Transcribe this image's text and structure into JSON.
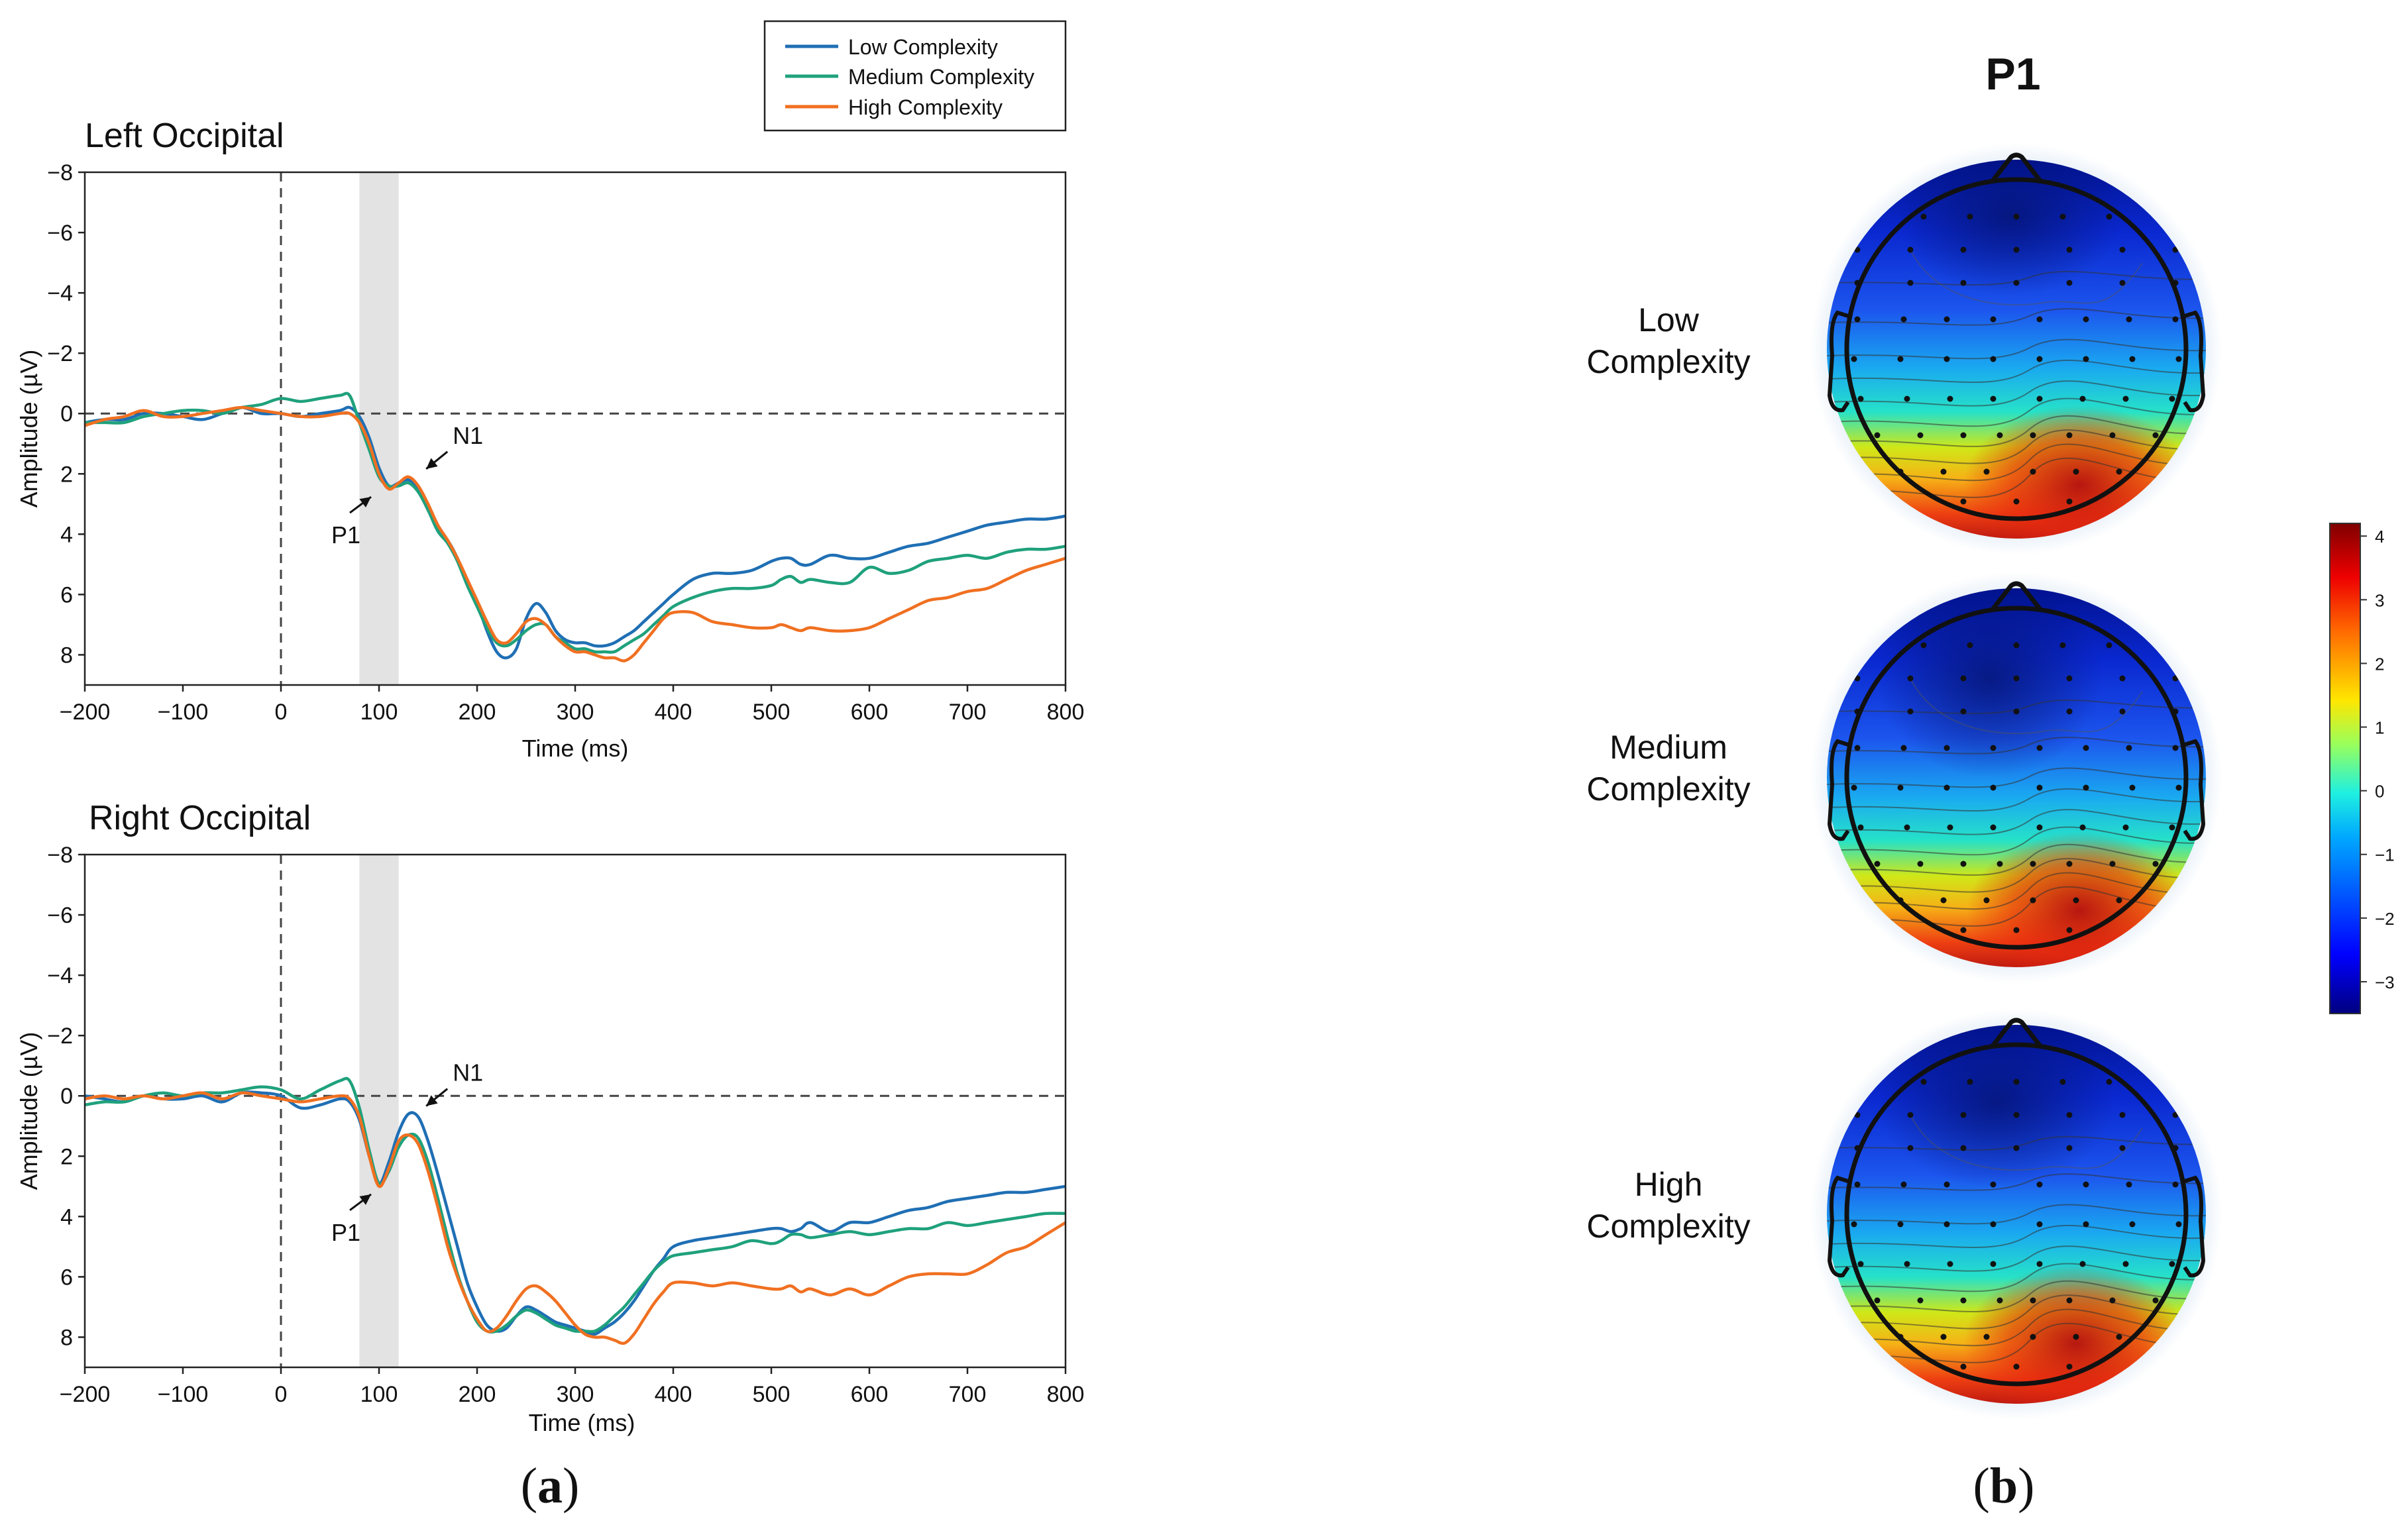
{
  "chart_data": [
    {
      "type": "line",
      "title": "Left Occipital",
      "xlabel": "Time (ms)",
      "ylabel": "Amplitude (µV)",
      "xlim": [
        -200,
        800
      ],
      "ylim": [
        -8,
        9
      ],
      "y_inverted": true,
      "xticks": [
        -200,
        -100,
        0,
        100,
        200,
        300,
        400,
        500,
        600,
        700,
        800
      ],
      "xtick_labels": [
        "−200",
        "−100",
        "0",
        "100",
        "200",
        "300",
        "400",
        "500",
        "600",
        "700",
        "800"
      ],
      "yticks": [
        -8,
        -6,
        -4,
        -2,
        0,
        2,
        4,
        6,
        8
      ],
      "ytick_labels": [
        "−8",
        "−6",
        "−4",
        "−2",
        "0",
        "2",
        "4",
        "6",
        "8"
      ],
      "shaded_window": [
        80,
        120
      ],
      "annotations": [
        {
          "text": "P1",
          "x": 100,
          "y": 2.5
        },
        {
          "text": "N1",
          "x": 140,
          "y": 2.1
        }
      ],
      "series": [
        {
          "name": "Low Complexity",
          "color": "#1f6fb4",
          "x": [
            -200,
            -180,
            -160,
            -140,
            -120,
            -100,
            -80,
            -60,
            -40,
            -20,
            0,
            20,
            40,
            60,
            70,
            80,
            90,
            100,
            110,
            120,
            130,
            140,
            150,
            160,
            170,
            180,
            190,
            200,
            210,
            220,
            230,
            240,
            250,
            260,
            270,
            280,
            290,
            300,
            310,
            320,
            330,
            340,
            350,
            360,
            370,
            380,
            390,
            400,
            420,
            440,
            460,
            480,
            500,
            510,
            520,
            530,
            540,
            560,
            580,
            600,
            620,
            640,
            660,
            680,
            700,
            720,
            740,
            760,
            780,
            800
          ],
          "y": [
            0.3,
            0.2,
            0.2,
            0.0,
            0.0,
            0.1,
            0.2,
            0.0,
            -0.2,
            0.0,
            0.0,
            0.1,
            0.0,
            -0.1,
            -0.2,
            0.1,
            0.8,
            1.8,
            2.4,
            2.3,
            2.2,
            2.5,
            3.2,
            3.8,
            4.2,
            4.8,
            5.6,
            6.3,
            7.2,
            7.9,
            8.1,
            7.8,
            6.8,
            6.3,
            6.6,
            7.2,
            7.5,
            7.6,
            7.6,
            7.7,
            7.7,
            7.6,
            7.4,
            7.2,
            6.9,
            6.6,
            6.3,
            6.0,
            5.5,
            5.3,
            5.3,
            5.2,
            4.9,
            4.8,
            4.8,
            5.0,
            5.0,
            4.7,
            4.8,
            4.8,
            4.6,
            4.4,
            4.3,
            4.1,
            3.9,
            3.7,
            3.6,
            3.5,
            3.5,
            3.4
          ]
        },
        {
          "name": "Medium Complexity",
          "color": "#1fa17c",
          "x": [
            -200,
            -180,
            -160,
            -140,
            -120,
            -100,
            -80,
            -60,
            -40,
            -20,
            0,
            20,
            40,
            60,
            70,
            80,
            90,
            100,
            110,
            120,
            130,
            140,
            150,
            160,
            170,
            180,
            190,
            200,
            210,
            220,
            230,
            240,
            250,
            260,
            270,
            280,
            290,
            300,
            310,
            320,
            330,
            340,
            350,
            360,
            370,
            380,
            390,
            400,
            420,
            440,
            460,
            480,
            500,
            510,
            520,
            530,
            540,
            560,
            580,
            600,
            620,
            640,
            660,
            680,
            700,
            720,
            740,
            760,
            780,
            800
          ],
          "y": [
            0.3,
            0.3,
            0.3,
            0.1,
            0.0,
            -0.1,
            -0.1,
            0.0,
            -0.2,
            -0.3,
            -0.5,
            -0.4,
            -0.5,
            -0.6,
            -0.6,
            0.3,
            1.2,
            2.1,
            2.4,
            2.4,
            2.3,
            2.6,
            3.2,
            3.9,
            4.3,
            4.9,
            5.7,
            6.4,
            7.1,
            7.6,
            7.7,
            7.5,
            7.2,
            7.0,
            7.0,
            7.4,
            7.6,
            7.8,
            7.8,
            7.9,
            7.9,
            7.9,
            7.7,
            7.5,
            7.3,
            7.0,
            6.7,
            6.4,
            6.1,
            5.9,
            5.8,
            5.8,
            5.7,
            5.5,
            5.4,
            5.6,
            5.5,
            5.6,
            5.6,
            5.1,
            5.3,
            5.2,
            4.9,
            4.8,
            4.7,
            4.8,
            4.6,
            4.5,
            4.5,
            4.4
          ]
        },
        {
          "name": "High Complexity",
          "color": "#f07021",
          "x": [
            -200,
            -180,
            -160,
            -140,
            -120,
            -100,
            -80,
            -60,
            -40,
            -20,
            0,
            20,
            40,
            60,
            70,
            80,
            90,
            100,
            110,
            120,
            130,
            140,
            150,
            160,
            170,
            180,
            190,
            200,
            210,
            220,
            230,
            240,
            250,
            260,
            270,
            280,
            290,
            300,
            310,
            320,
            330,
            340,
            350,
            360,
            370,
            380,
            390,
            400,
            420,
            440,
            460,
            480,
            500,
            510,
            520,
            530,
            540,
            560,
            580,
            600,
            620,
            640,
            660,
            680,
            700,
            720,
            740,
            760,
            780,
            800
          ],
          "y": [
            0.4,
            0.2,
            0.1,
            -0.1,
            0.1,
            0.1,
            0.0,
            -0.1,
            -0.2,
            -0.1,
            0.0,
            0.1,
            0.1,
            0.0,
            0.0,
            0.3,
            1.0,
            2.0,
            2.5,
            2.3,
            2.1,
            2.4,
            3.0,
            3.7,
            4.2,
            4.8,
            5.5,
            6.2,
            6.9,
            7.5,
            7.6,
            7.3,
            6.9,
            6.8,
            7.0,
            7.4,
            7.7,
            7.9,
            7.9,
            8.0,
            8.1,
            8.1,
            8.2,
            8.0,
            7.6,
            7.2,
            6.8,
            6.6,
            6.6,
            6.9,
            7.0,
            7.1,
            7.1,
            7.0,
            7.1,
            7.2,
            7.1,
            7.2,
            7.2,
            7.1,
            6.8,
            6.5,
            6.2,
            6.1,
            5.9,
            5.8,
            5.5,
            5.2,
            5.0,
            4.8
          ]
        }
      ]
    },
    {
      "type": "line",
      "title": "Right Occipital",
      "xlabel": "Time (ms)",
      "ylabel": "Amplitude (µV)",
      "xlim": [
        -200,
        800
      ],
      "ylim": [
        -8,
        9
      ],
      "y_inverted": true,
      "xticks": [
        -200,
        -100,
        0,
        100,
        200,
        300,
        400,
        500,
        600,
        700,
        800
      ],
      "xtick_labels": [
        "−200",
        "−100",
        "0",
        "100",
        "200",
        "300",
        "400",
        "500",
        "600",
        "700",
        "800"
      ],
      "yticks": [
        -8,
        -6,
        -4,
        -2,
        0,
        2,
        4,
        6,
        8
      ],
      "ytick_labels": [
        "−8",
        "−6",
        "−4",
        "−2",
        "0",
        "2",
        "4",
        "6",
        "8"
      ],
      "shaded_window": [
        80,
        120
      ],
      "annotations": [
        {
          "text": "P1",
          "x": 100,
          "y": 3.0
        },
        {
          "text": "N1",
          "x": 140,
          "y": 0.6
        }
      ],
      "series": [
        {
          "name": "Low Complexity",
          "color": "#1f6fb4",
          "x": [
            -200,
            -180,
            -160,
            -140,
            -120,
            -100,
            -80,
            -60,
            -40,
            -20,
            0,
            20,
            40,
            60,
            70,
            80,
            90,
            100,
            110,
            120,
            130,
            140,
            150,
            160,
            170,
            180,
            190,
            200,
            210,
            220,
            230,
            240,
            250,
            260,
            270,
            280,
            290,
            300,
            310,
            320,
            330,
            340,
            350,
            360,
            370,
            380,
            390,
            400,
            420,
            440,
            460,
            480,
            500,
            510,
            520,
            530,
            540,
            560,
            580,
            600,
            620,
            640,
            660,
            680,
            700,
            720,
            740,
            760,
            780,
            800
          ],
          "y": [
            0.0,
            0.1,
            0.2,
            0.0,
            0.1,
            0.1,
            0.0,
            0.2,
            -0.1,
            -0.1,
            0.0,
            0.4,
            0.3,
            0.1,
            0.2,
            0.8,
            2.0,
            2.9,
            2.2,
            1.2,
            0.6,
            0.7,
            1.5,
            2.6,
            3.8,
            5.0,
            6.2,
            7.0,
            7.6,
            7.8,
            7.7,
            7.3,
            7.0,
            7.1,
            7.3,
            7.5,
            7.6,
            7.7,
            7.8,
            7.9,
            7.7,
            7.5,
            7.2,
            6.8,
            6.3,
            5.8,
            5.4,
            5.0,
            4.8,
            4.7,
            4.6,
            4.5,
            4.4,
            4.4,
            4.5,
            4.4,
            4.2,
            4.5,
            4.2,
            4.2,
            4.0,
            3.8,
            3.7,
            3.5,
            3.4,
            3.3,
            3.2,
            3.2,
            3.1,
            3.0
          ]
        },
        {
          "name": "Medium Complexity",
          "color": "#1fa17c",
          "x": [
            -200,
            -180,
            -160,
            -140,
            -120,
            -100,
            -80,
            -60,
            -40,
            -20,
            0,
            20,
            40,
            60,
            70,
            80,
            90,
            100,
            110,
            120,
            130,
            140,
            150,
            160,
            170,
            180,
            190,
            200,
            210,
            220,
            230,
            240,
            250,
            260,
            270,
            280,
            290,
            300,
            310,
            320,
            330,
            340,
            350,
            360,
            370,
            380,
            390,
            400,
            420,
            440,
            460,
            480,
            500,
            510,
            520,
            530,
            540,
            560,
            580,
            600,
            620,
            640,
            660,
            680,
            700,
            720,
            740,
            760,
            780,
            800
          ],
          "y": [
            0.3,
            0.2,
            0.2,
            0.0,
            -0.1,
            0.0,
            -0.1,
            -0.1,
            -0.2,
            -0.3,
            -0.2,
            0.1,
            -0.2,
            -0.5,
            -0.5,
            0.4,
            1.8,
            2.9,
            2.5,
            1.7,
            1.3,
            1.4,
            2.2,
            3.4,
            4.7,
            5.9,
            6.8,
            7.5,
            7.8,
            7.8,
            7.6,
            7.3,
            7.1,
            7.2,
            7.4,
            7.6,
            7.7,
            7.8,
            7.8,
            7.8,
            7.6,
            7.3,
            7.0,
            6.6,
            6.2,
            5.8,
            5.5,
            5.3,
            5.2,
            5.1,
            5.0,
            4.8,
            4.9,
            4.8,
            4.6,
            4.6,
            4.7,
            4.6,
            4.5,
            4.6,
            4.5,
            4.4,
            4.4,
            4.2,
            4.3,
            4.2,
            4.1,
            4.0,
            3.9,
            3.9
          ]
        },
        {
          "name": "High Complexity",
          "color": "#f07021",
          "x": [
            -200,
            -180,
            -160,
            -140,
            -120,
            -100,
            -80,
            -60,
            -40,
            -20,
            0,
            20,
            40,
            60,
            70,
            80,
            90,
            100,
            110,
            120,
            130,
            140,
            150,
            160,
            170,
            180,
            190,
            200,
            210,
            220,
            230,
            240,
            250,
            260,
            270,
            280,
            290,
            300,
            310,
            320,
            330,
            340,
            350,
            360,
            370,
            380,
            390,
            400,
            420,
            440,
            460,
            480,
            500,
            510,
            520,
            530,
            540,
            560,
            580,
            600,
            620,
            640,
            660,
            680,
            700,
            720,
            740,
            760,
            780,
            800
          ],
          "y": [
            0.1,
            0.0,
            0.1,
            0.0,
            0.1,
            0.0,
            -0.1,
            0.1,
            -0.1,
            0.0,
            0.1,
            0.2,
            0.1,
            0.0,
            0.1,
            0.7,
            2.0,
            3.0,
            2.4,
            1.5,
            1.3,
            1.6,
            2.5,
            3.7,
            5.0,
            6.0,
            6.8,
            7.4,
            7.8,
            7.7,
            7.3,
            6.8,
            6.4,
            6.3,
            6.5,
            6.8,
            7.2,
            7.6,
            7.9,
            8.0,
            8.0,
            8.1,
            8.2,
            7.9,
            7.4,
            6.9,
            6.5,
            6.2,
            6.2,
            6.3,
            6.2,
            6.3,
            6.4,
            6.4,
            6.3,
            6.5,
            6.4,
            6.6,
            6.4,
            6.6,
            6.3,
            6.0,
            5.9,
            5.9,
            5.9,
            5.6,
            5.2,
            5.0,
            4.6,
            4.2
          ]
        }
      ]
    },
    {
      "type": "heatmap",
      "title": "P1",
      "conditions": [
        "Low Complexity",
        "Medium Complexity",
        "High Complexity"
      ],
      "colorbar": {
        "min": -3.5,
        "max": 4.2,
        "ticks": [
          4,
          3,
          2,
          1,
          0,
          -1,
          -2,
          -3
        ],
        "tick_labels": [
          "4",
          "3",
          "2",
          "1",
          "0",
          "−1",
          "−2",
          "−3"
        ]
      }
    }
  ],
  "legend": {
    "items": [
      "Low Complexity",
      "Medium Complexity",
      "High Complexity"
    ],
    "colors": [
      "#1f6fb4",
      "#1fa17c",
      "#f07021"
    ]
  },
  "topomaps": {
    "title": "P1",
    "row_labels": [
      {
        "line1": "Low",
        "line2": "Complexity"
      },
      {
        "line1": "Medium",
        "line2": "Complexity"
      },
      {
        "line1": "High",
        "line2": "Complexity"
      }
    ]
  },
  "captions": {
    "a_open": "(",
    "a_letter": "a",
    "a_close": ")",
    "b_open": "(",
    "b_letter": "b",
    "b_close": ")"
  }
}
